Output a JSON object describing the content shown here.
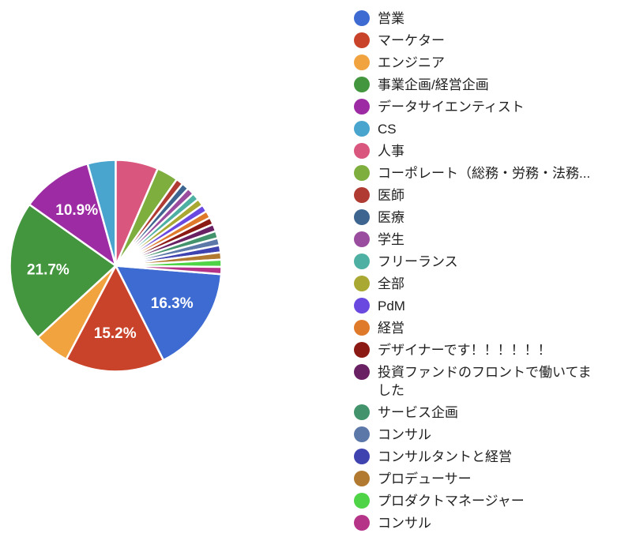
{
  "page": {
    "background": "#ffffff",
    "legend_position": "right"
  },
  "chart_data": {
    "type": "pie",
    "title": "",
    "legend_position": "right",
    "rotation_deg": 94.6,
    "gap_color": "#ffffff",
    "label_color": "#ffffff",
    "series": [
      {
        "label": "営業",
        "value": 16.3,
        "color": "#3E6BD1",
        "pct_label": "16.3%"
      },
      {
        "label": "マーケター",
        "value": 15.2,
        "color": "#C9432A",
        "pct_label": "15.2%"
      },
      {
        "label": "エンジニア",
        "value": 5.4,
        "color": "#F1A33F",
        "pct_label": null
      },
      {
        "label": "事業企画/経営企画",
        "value": 21.7,
        "color": "#43963E",
        "pct_label": "21.7%"
      },
      {
        "label": "データサイエンティスト",
        "value": 10.9,
        "color": "#9D2BA3",
        "pct_label": "10.9%"
      },
      {
        "label": "CS",
        "value": 4.3,
        "color": "#49A4CE",
        "pct_label": null
      },
      {
        "label": "人事",
        "value": 6.5,
        "color": "#D9567E",
        "pct_label": null
      },
      {
        "label": "コーポレート（総務・労務・法務...",
        "value": 3.3,
        "color": "#7DAE3E",
        "pct_label": null
      },
      {
        "label": "医師",
        "value": 1.1,
        "color": "#AF3B32",
        "pct_label": null
      },
      {
        "label": "医療",
        "value": 1.1,
        "color": "#3E6590",
        "pct_label": null
      },
      {
        "label": "学生",
        "value": 1.1,
        "color": "#9A4D9E",
        "pct_label": null
      },
      {
        "label": "フリーランス",
        "value": 1.1,
        "color": "#4EB0A2",
        "pct_label": null
      },
      {
        "label": "全部",
        "value": 1.1,
        "color": "#A8A832",
        "pct_label": null
      },
      {
        "label": "PdM",
        "value": 1.1,
        "color": "#6A49E0",
        "pct_label": null
      },
      {
        "label": "経営",
        "value": 1.1,
        "color": "#DE7A2A",
        "pct_label": null
      },
      {
        "label": "デザイナーです！！！！！！",
        "value": 1.1,
        "color": "#8C1A14",
        "pct_label": null
      },
      {
        "label": "投資ファンドのフロントで働いてました",
        "value": 1.1,
        "color": "#6A2164",
        "pct_label": null
      },
      {
        "label": "サービス企画",
        "value": 1.1,
        "color": "#43946C",
        "pct_label": null
      },
      {
        "label": "コンサル",
        "value": 1.1,
        "color": "#5B78A8",
        "pct_label": null
      },
      {
        "label": "コンサルタントと経営",
        "value": 1.1,
        "color": "#3F43B0",
        "pct_label": null
      },
      {
        "label": "プロデューサー",
        "value": 1.1,
        "color": "#B27A30",
        "pct_label": null
      },
      {
        "label": "プロダクトマネージャー",
        "value": 1.1,
        "color": "#4FD447",
        "pct_label": null
      },
      {
        "label": "コンサル",
        "value": 1.1,
        "color": "#B53488",
        "pct_label": null
      }
    ]
  }
}
